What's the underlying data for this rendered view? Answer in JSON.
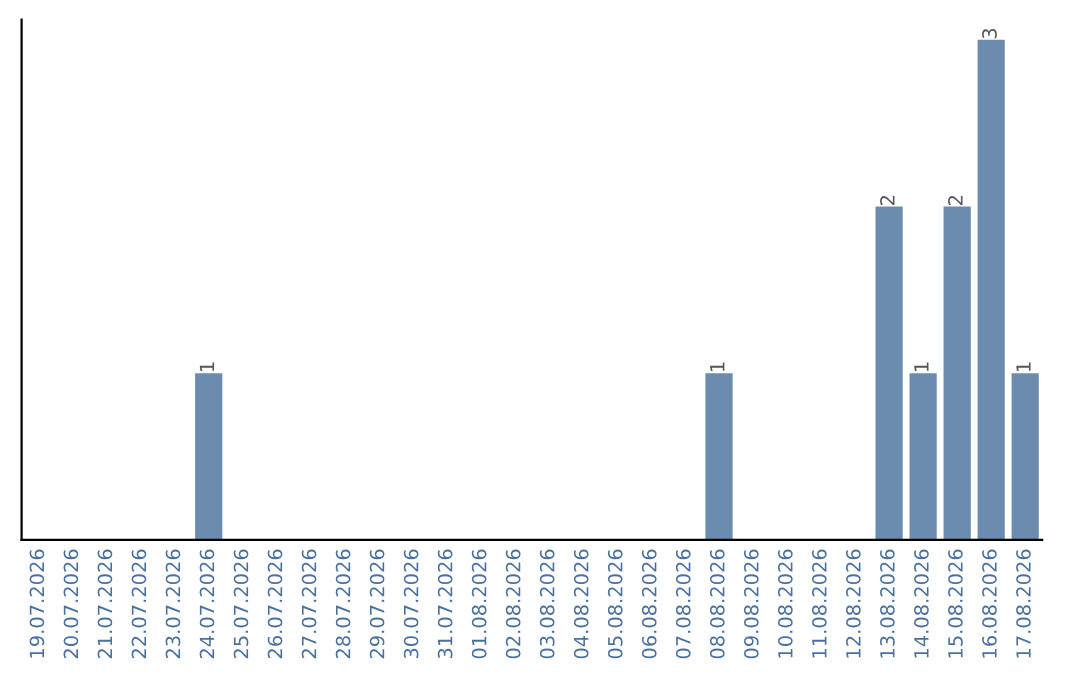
{
  "chart_data": {
    "type": "bar",
    "categories": [
      "19.07.2026",
      "20.07.2026",
      "21.07.2026",
      "22.07.2026",
      "23.07.2026",
      "24.07.2026",
      "25.07.2026",
      "26.07.2026",
      "27.07.2026",
      "28.07.2026",
      "29.07.2026",
      "30.07.2026",
      "31.07.2026",
      "01.08.2026",
      "02.08.2026",
      "03.08.2026",
      "04.08.2026",
      "05.08.2026",
      "06.08.2026",
      "07.08.2026",
      "08.08.2026",
      "09.08.2026",
      "10.08.2026",
      "11.08.2026",
      "12.08.2026",
      "13.08.2026",
      "14.08.2026",
      "15.08.2026",
      "16.08.2026",
      "17.08.2026"
    ],
    "values": [
      0,
      0,
      0,
      0,
      0,
      1,
      0,
      0,
      0,
      0,
      0,
      0,
      0,
      0,
      0,
      0,
      0,
      0,
      0,
      0,
      1,
      0,
      0,
      0,
      0,
      2,
      1,
      2,
      3,
      1
    ],
    "value_labels": [
      null,
      null,
      null,
      null,
      null,
      "1",
      null,
      null,
      null,
      null,
      null,
      null,
      null,
      null,
      null,
      null,
      null,
      null,
      null,
      null,
      "1",
      null,
      null,
      null,
      null,
      "2",
      "1",
      "2",
      "3",
      "1"
    ],
    "color": "#6b8cae",
    "ylim": [
      0,
      3.12
    ],
    "tick_labels": "x",
    "grid": false,
    "legend": false
  }
}
